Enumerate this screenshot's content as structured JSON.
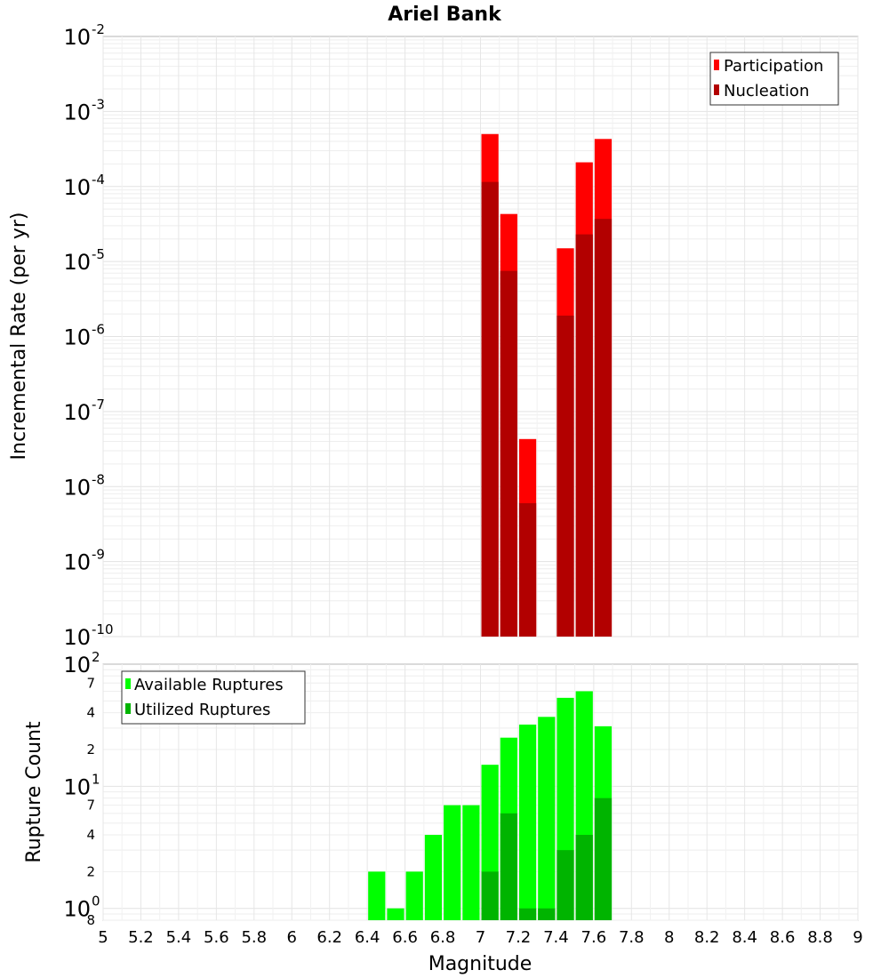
{
  "chart_data": [
    {
      "type": "bar",
      "title": "Ariel Bank",
      "xlabel": "",
      "ylabel": "Incremental Rate (per yr)",
      "yscale": "log",
      "xlim": [
        5,
        9
      ],
      "ylim": [
        1e-10,
        0.01
      ],
      "legend_position": "top-right",
      "x": [
        7.05,
        7.15,
        7.25,
        7.45,
        7.55,
        7.65
      ],
      "series": [
        {
          "name": "Participation",
          "color": "#ff0000",
          "values": [
            0.0005,
            4.3e-05,
            4.3e-08,
            1.5e-05,
            0.00021,
            0.00043
          ]
        },
        {
          "name": "Nucleation",
          "color": "#b20000",
          "values": [
            0.000115,
            7.5e-06,
            6e-09,
            1.9e-06,
            2.3e-05,
            3.7e-05
          ]
        }
      ],
      "y_ticks": [
        {
          "base": "10",
          "exp": "-2"
        },
        {
          "base": "10",
          "exp": "-3"
        },
        {
          "base": "10",
          "exp": "-4"
        },
        {
          "base": "10",
          "exp": "-5"
        },
        {
          "base": "10",
          "exp": "-6"
        },
        {
          "base": "10",
          "exp": "-7"
        },
        {
          "base": "10",
          "exp": "-8"
        },
        {
          "base": "10",
          "exp": "-9"
        },
        {
          "base": "10",
          "exp": "-10"
        }
      ]
    },
    {
      "type": "bar",
      "title": "",
      "xlabel": "Magnitude",
      "ylabel": "Rupture Count",
      "yscale": "log",
      "xlim": [
        5,
        9
      ],
      "ylim": [
        0.8,
        100
      ],
      "legend_position": "top-left",
      "x": [
        6.45,
        6.55,
        6.65,
        6.75,
        6.85,
        6.95,
        7.05,
        7.15,
        7.25,
        7.35,
        7.45,
        7.55,
        7.65
      ],
      "series": [
        {
          "name": "Available Ruptures",
          "color": "#00ff00",
          "values": [
            2,
            1,
            2,
            4,
            7,
            7,
            15,
            25,
            32,
            37,
            53,
            60,
            31
          ]
        },
        {
          "name": "Utilized Ruptures",
          "color": "#00b400",
          "values": [
            null,
            null,
            null,
            null,
            null,
            null,
            2,
            6,
            1,
            1,
            3,
            4,
            8
          ]
        }
      ],
      "y_ticks": [
        {
          "base": "10",
          "exp": "2"
        },
        {
          "base": "10",
          "exp": "1"
        },
        {
          "base": "10",
          "exp": "0"
        }
      ],
      "minor_tick_labels": [
        "7",
        "4",
        "2",
        "7",
        "4",
        "2",
        "8"
      ],
      "x_ticks": [
        "5",
        "5.2",
        "5.4",
        "5.6",
        "5.8",
        "6",
        "6.2",
        "6.4",
        "6.6",
        "6.8",
        "7",
        "7.2",
        "7.4",
        "7.6",
        "7.8",
        "8",
        "8.2",
        "8.4",
        "8.6",
        "8.8",
        "9"
      ]
    }
  ]
}
